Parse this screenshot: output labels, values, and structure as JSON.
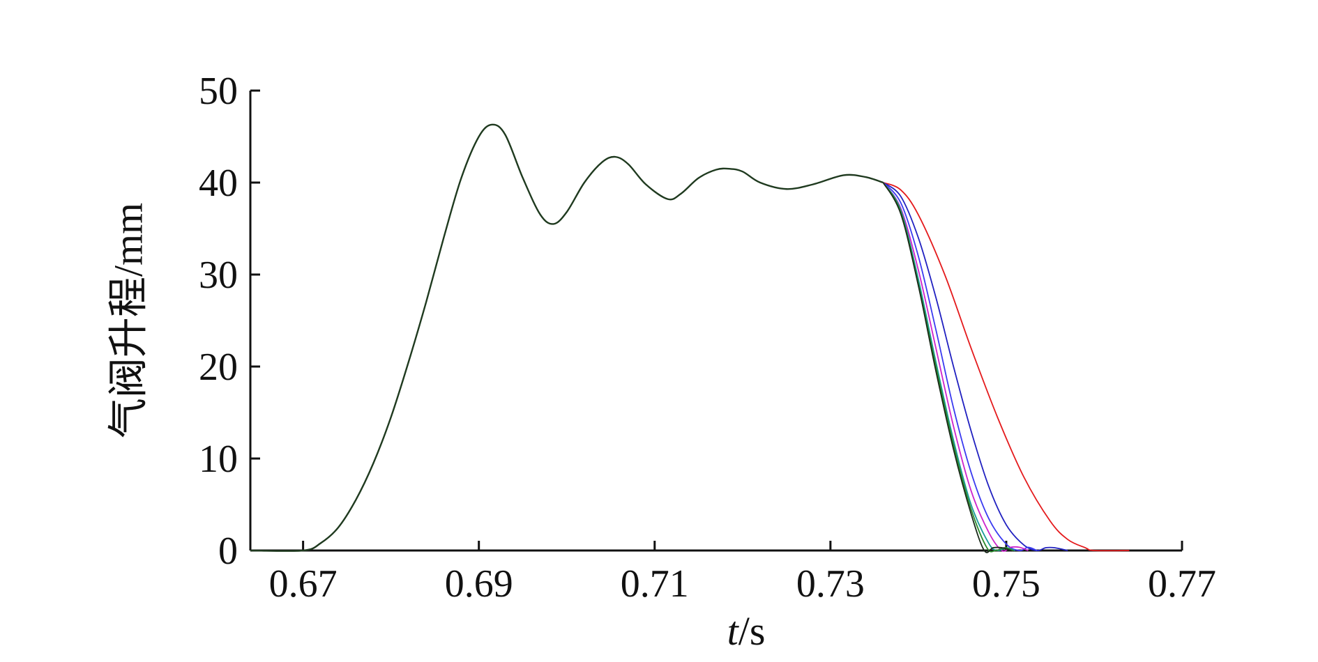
{
  "chart_data": {
    "type": "line",
    "title": "",
    "xlabel_italic": "t",
    "xlabel_rest": "/s",
    "ylabel": "气阀升程/mm",
    "xlim": [
      0.664,
      0.77
    ],
    "ylim": [
      0,
      50
    ],
    "x_ticks": [
      0.67,
      0.69,
      0.71,
      0.73,
      0.75,
      0.77
    ],
    "x_tick_labels": [
      "0.67",
      "0.69",
      "0.71",
      "0.73",
      "0.75",
      "0.77"
    ],
    "y_ticks": [
      0,
      10,
      20,
      30,
      40,
      50
    ],
    "y_tick_labels": [
      "0",
      "10",
      "20",
      "30",
      "40",
      "50"
    ],
    "grid": false,
    "legend": "none",
    "common_curve": {
      "color": "#1f3a1f",
      "x": [
        0.664,
        0.67,
        0.672,
        0.674,
        0.676,
        0.678,
        0.68,
        0.682,
        0.684,
        0.686,
        0.688,
        0.69,
        0.6915,
        0.693,
        0.695,
        0.697,
        0.6985,
        0.7,
        0.702,
        0.704,
        0.7055,
        0.707,
        0.709,
        0.7115,
        0.713,
        0.715,
        0.717,
        0.7185,
        0.72,
        0.722,
        0.725,
        0.728,
        0.7315,
        0.734,
        0.736
      ],
      "y": [
        0,
        0,
        0.8,
        2.5,
        5.5,
        9.5,
        14.5,
        20.5,
        27.0,
        34.0,
        40.5,
        45.0,
        46.3,
        45.2,
        40.5,
        36.5,
        35.5,
        36.8,
        40.0,
        42.2,
        42.8,
        42.0,
        39.8,
        38.2,
        38.8,
        40.5,
        41.4,
        41.5,
        41.2,
        40.0,
        39.3,
        39.8,
        40.8,
        40.6,
        40.0
      ]
    },
    "series": [
      {
        "color": "#e41a1c",
        "x": [
          0.736,
          0.738,
          0.74,
          0.743,
          0.746,
          0.749,
          0.752,
          0.755,
          0.757,
          0.759,
          0.76,
          0.764
        ],
        "y": [
          40.0,
          39.2,
          36.5,
          30.0,
          22.0,
          14.5,
          8.0,
          3.2,
          1.2,
          0.3,
          0,
          0
        ]
      },
      {
        "color": "#2020c0",
        "x": [
          0.736,
          0.738,
          0.74,
          0.742,
          0.744,
          0.746,
          0.748,
          0.75,
          0.752,
          0.7535,
          0.7545,
          0.7555,
          0.757
        ],
        "y": [
          40.0,
          38.5,
          34.0,
          27.5,
          20.0,
          13.0,
          7.0,
          2.8,
          0.6,
          0,
          0.3,
          0.3,
          0
        ]
      },
      {
        "color": "#3a3af0",
        "x": [
          0.736,
          0.738,
          0.74,
          0.742,
          0.744,
          0.746,
          0.748,
          0.75,
          0.7515,
          0.7525,
          0.7535
        ],
        "y": [
          40.0,
          37.8,
          32.0,
          24.0,
          15.5,
          8.5,
          3.5,
          0.7,
          0,
          0.35,
          0
        ]
      },
      {
        "color": "#cc22cc",
        "x": [
          0.736,
          0.738,
          0.74,
          0.742,
          0.744,
          0.746,
          0.748,
          0.7495,
          0.7505,
          0.7515,
          0.7525
        ],
        "y": [
          40.0,
          37.2,
          30.5,
          22.0,
          13.5,
          6.5,
          2.0,
          0,
          0.35,
          0.35,
          0
        ]
      },
      {
        "color": "#1a9a9a",
        "x": [
          0.736,
          0.738,
          0.74,
          0.742,
          0.744,
          0.746,
          0.748,
          0.749,
          0.75,
          0.751
        ],
        "y": [
          40.0,
          37.0,
          29.5,
          20.5,
          12.0,
          5.0,
          0.8,
          0,
          0.3,
          0
        ]
      },
      {
        "color": "#2a8a2a",
        "x": [
          0.736,
          0.738,
          0.74,
          0.742,
          0.744,
          0.746,
          0.7478,
          0.7488,
          0.7498,
          0.7508
        ],
        "y": [
          40.0,
          36.8,
          29.0,
          20.0,
          11.5,
          4.5,
          0.3,
          0,
          0.3,
          0
        ]
      },
      {
        "color": "#1a2a1a",
        "x": [
          0.736,
          0.738,
          0.74,
          0.742,
          0.744,
          0.746,
          0.7475,
          0.7485,
          0.7495,
          0.7505
        ],
        "y": [
          40.0,
          36.6,
          28.8,
          19.5,
          11.0,
          4.0,
          0,
          0.3,
          0.3,
          0
        ]
      }
    ]
  }
}
